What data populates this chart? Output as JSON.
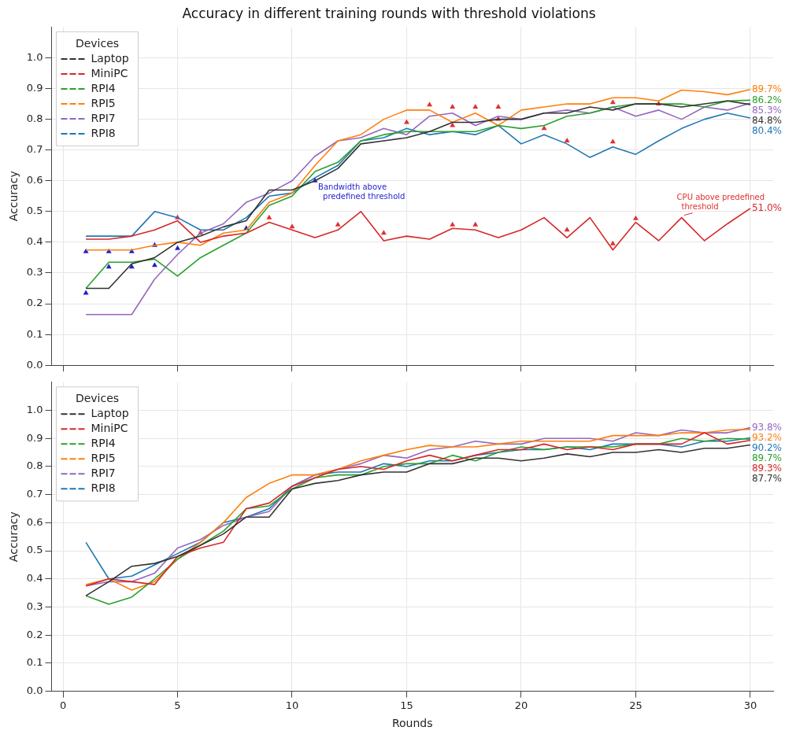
{
  "chart_data": [
    {
      "type": "line",
      "title": "Accuracy in different training rounds with threshold violations",
      "ylabel": "Accuracy",
      "legend_title": "Devices",
      "legend": "top left",
      "grid": true,
      "marker": "none",
      "tick_labels": "y",
      "x": [
        1,
        2,
        3,
        4,
        5,
        6,
        7,
        8,
        9,
        10,
        11,
        12,
        13,
        14,
        15,
        16,
        17,
        18,
        19,
        20,
        21,
        22,
        23,
        24,
        25,
        26,
        27,
        28,
        29,
        30
      ],
      "xlim": [
        -0.5,
        31
      ],
      "xticks": [
        0,
        5,
        10,
        15,
        20,
        25,
        30
      ],
      "ylim": [
        0,
        1.1
      ],
      "yticks": [
        {
          "value": 0,
          "label": "0.0"
        },
        {
          "value": 0.1,
          "label": "0.1"
        },
        {
          "value": 0.2,
          "label": "0.2"
        },
        {
          "value": 0.3,
          "label": "0.3"
        },
        {
          "value": 0.4,
          "label": "0.4"
        },
        {
          "value": 0.5,
          "label": "0.5"
        },
        {
          "value": 0.6,
          "label": "0.6"
        },
        {
          "value": 0.7,
          "label": "0.7"
        },
        {
          "value": 0.8,
          "label": "0.8"
        },
        {
          "value": 0.9,
          "label": "0.9"
        },
        {
          "value": 1,
          "label": "1.0"
        }
      ],
      "annotations": [
        {
          "text": "Bandwidth above\npredefined threshold",
          "x": 11,
          "y": 0.6
        },
        {
          "text": "CPU above predefined\nthreshold",
          "x": 27,
          "y": 0.48
        }
      ],
      "series": [
        {
          "name": "Laptop",
          "color": "#333333",
          "values": [
            0.25,
            0.25,
            0.33,
            0.35,
            0.4,
            0.42,
            0.45,
            0.47,
            0.57,
            0.57,
            0.6,
            0.64,
            0.72,
            0.73,
            0.74,
            0.76,
            0.79,
            0.79,
            0.8,
            0.8,
            0.82,
            0.82,
            0.84,
            0.83,
            0.85,
            0.85,
            0.84,
            0.85,
            0.86,
            0.848
          ],
          "value_labels": [
            null,
            null,
            null,
            null,
            null,
            null,
            null,
            null,
            null,
            null,
            null,
            null,
            null,
            null,
            null,
            null,
            null,
            null,
            null,
            null,
            null,
            null,
            null,
            null,
            null,
            null,
            null,
            null,
            null,
            "84.8%"
          ]
        },
        {
          "name": "MiniPC",
          "color": "#d62728",
          "values": [
            0.41,
            0.41,
            0.42,
            0.44,
            0.47,
            0.4,
            0.42,
            0.43,
            0.465,
            0.44,
            0.415,
            0.44,
            0.5,
            0.405,
            0.42,
            0.41,
            0.445,
            0.44,
            0.415,
            0.44,
            0.48,
            0.415,
            0.48,
            0.375,
            0.465,
            0.405,
            0.48,
            0.405,
            0.46,
            0.51
          ],
          "value_labels": [
            null,
            null,
            null,
            null,
            null,
            null,
            null,
            null,
            null,
            null,
            null,
            null,
            null,
            null,
            null,
            null,
            null,
            null,
            null,
            null,
            null,
            null,
            null,
            null,
            null,
            null,
            null,
            null,
            null,
            "51.0%"
          ]
        },
        {
          "name": "RPI4",
          "color": "#2ca02c",
          "values": [
            0.25,
            0.335,
            0.335,
            0.345,
            0.29,
            0.35,
            0.39,
            0.43,
            0.52,
            0.55,
            0.63,
            0.66,
            0.73,
            0.75,
            0.76,
            0.76,
            0.76,
            0.76,
            0.78,
            0.77,
            0.78,
            0.81,
            0.82,
            0.84,
            0.85,
            0.85,
            0.85,
            0.84,
            0.86,
            0.862
          ],
          "value_labels": [
            null,
            null,
            null,
            null,
            null,
            null,
            null,
            null,
            null,
            null,
            null,
            null,
            null,
            null,
            null,
            null,
            null,
            null,
            null,
            null,
            null,
            null,
            null,
            null,
            null,
            null,
            null,
            null,
            null,
            "86.2%"
          ]
        },
        {
          "name": "RPI5",
          "color": "#ff7f0e",
          "values": [
            0.375,
            0.375,
            0.375,
            0.39,
            0.4,
            0.39,
            0.43,
            0.44,
            0.53,
            0.56,
            0.65,
            0.73,
            0.75,
            0.8,
            0.83,
            0.83,
            0.79,
            0.82,
            0.78,
            0.83,
            0.84,
            0.85,
            0.85,
            0.87,
            0.87,
            0.86,
            0.895,
            0.89,
            0.88,
            0.897
          ],
          "value_labels": [
            null,
            null,
            null,
            null,
            null,
            null,
            null,
            null,
            null,
            null,
            null,
            null,
            null,
            null,
            null,
            null,
            null,
            null,
            null,
            null,
            null,
            null,
            null,
            null,
            null,
            null,
            null,
            null,
            null,
            "89.7%"
          ]
        },
        {
          "name": "RPI7",
          "color": "#9467bd",
          "values": [
            0.165,
            0.165,
            0.165,
            0.28,
            0.36,
            0.43,
            0.46,
            0.53,
            0.56,
            0.6,
            0.68,
            0.73,
            0.74,
            0.77,
            0.75,
            0.81,
            0.82,
            0.78,
            0.81,
            0.8,
            0.82,
            0.83,
            0.82,
            0.84,
            0.81,
            0.83,
            0.8,
            0.84,
            0.83,
            0.853
          ],
          "value_labels": [
            null,
            null,
            null,
            null,
            null,
            null,
            null,
            null,
            null,
            null,
            null,
            null,
            null,
            null,
            null,
            null,
            null,
            null,
            null,
            null,
            null,
            null,
            null,
            null,
            null,
            null,
            null,
            null,
            null,
            "85.3%"
          ]
        },
        {
          "name": "RPI8",
          "color": "#1f77b4",
          "values": [
            0.42,
            0.42,
            0.42,
            0.5,
            0.48,
            0.44,
            0.44,
            0.48,
            0.55,
            0.56,
            0.61,
            0.65,
            0.73,
            0.74,
            0.77,
            0.75,
            0.76,
            0.75,
            0.78,
            0.72,
            0.75,
            0.72,
            0.676,
            0.71,
            0.686,
            0.73,
            0.77,
            0.8,
            0.82,
            0.804
          ],
          "value_labels": [
            null,
            null,
            null,
            null,
            null,
            null,
            null,
            null,
            null,
            null,
            null,
            null,
            null,
            null,
            null,
            null,
            null,
            null,
            null,
            null,
            null,
            null,
            null,
            null,
            null,
            null,
            null,
            null,
            null,
            "80.4%"
          ]
        },
        {
          "type": "scatter",
          "marker": "triangle",
          "color": "#1f1fcc",
          "x": [
            1,
            1,
            2,
            2,
            3,
            3,
            4,
            4,
            5,
            8,
            11
          ],
          "values": [
            0.37,
            0.235,
            0.37,
            0.32,
            0.37,
            0.32,
            0.39,
            0.325,
            0.38,
            0.445,
            0.6
          ]
        },
        {
          "type": "scatter",
          "marker": "triangle",
          "color": "#e03030",
          "x": [
            5,
            6,
            9,
            10,
            12,
            14,
            15,
            16,
            17,
            17,
            17,
            18,
            18,
            19,
            19,
            21,
            22,
            22,
            24,
            24,
            24,
            25,
            26
          ],
          "values": [
            0.48,
            0.43,
            0.48,
            0.45,
            0.457,
            0.43,
            0.79,
            0.847,
            0.84,
            0.78,
            0.457,
            0.84,
            0.457,
            0.84,
            0.8,
            0.77,
            0.73,
            0.44,
            0.855,
            0.727,
            0.395,
            0.477,
            0.85
          ]
        }
      ]
    },
    {
      "type": "line",
      "xlabel": "Rounds",
      "ylabel": "Accuracy",
      "legend_title": "Devices",
      "legend": "top left",
      "grid": true,
      "marker": "none",
      "x": [
        1,
        2,
        3,
        4,
        5,
        6,
        7,
        8,
        9,
        10,
        11,
        12,
        13,
        14,
        15,
        16,
        17,
        18,
        19,
        20,
        21,
        22,
        23,
        24,
        25,
        26,
        27,
        28,
        29,
        30
      ],
      "xlim": [
        -0.5,
        31
      ],
      "xticks": [
        0,
        5,
        10,
        15,
        20,
        25,
        30
      ],
      "ylim": [
        0,
        1.1
      ],
      "yticks": [
        {
          "value": 0,
          "label": "0.0"
        },
        {
          "value": 0.1,
          "label": "0.1"
        },
        {
          "value": 0.2,
          "label": "0.2"
        },
        {
          "value": 0.3,
          "label": "0.3"
        },
        {
          "value": 0.4,
          "label": "0.4"
        },
        {
          "value": 0.5,
          "label": "0.5"
        },
        {
          "value": 0.6,
          "label": "0.6"
        },
        {
          "value": 0.7,
          "label": "0.7"
        },
        {
          "value": 0.8,
          "label": "0.8"
        },
        {
          "value": 0.9,
          "label": "0.9"
        },
        {
          "value": 1,
          "label": "1.0"
        }
      ],
      "series": [
        {
          "name": "Laptop",
          "color": "#333333",
          "values": [
            0.34,
            0.39,
            0.445,
            0.455,
            0.48,
            0.52,
            0.56,
            0.62,
            0.62,
            0.72,
            0.74,
            0.75,
            0.77,
            0.78,
            0.78,
            0.81,
            0.81,
            0.83,
            0.83,
            0.82,
            0.83,
            0.845,
            0.835,
            0.85,
            0.85,
            0.86,
            0.85,
            0.865,
            0.865,
            0.877
          ],
          "value_labels": [
            null,
            null,
            null,
            null,
            null,
            null,
            null,
            null,
            null,
            null,
            null,
            null,
            null,
            null,
            null,
            null,
            null,
            null,
            null,
            null,
            null,
            null,
            null,
            null,
            null,
            null,
            null,
            null,
            null,
            "87.7%"
          ]
        },
        {
          "name": "MiniPC",
          "color": "#d62728",
          "values": [
            0.375,
            0.4,
            0.39,
            0.38,
            0.48,
            0.51,
            0.53,
            0.65,
            0.67,
            0.73,
            0.76,
            0.79,
            0.8,
            0.79,
            0.82,
            0.84,
            0.82,
            0.84,
            0.86,
            0.86,
            0.88,
            0.86,
            0.87,
            0.86,
            0.88,
            0.88,
            0.88,
            0.92,
            0.88,
            0.893
          ],
          "value_labels": [
            null,
            null,
            null,
            null,
            null,
            null,
            null,
            null,
            null,
            null,
            null,
            null,
            null,
            null,
            null,
            null,
            null,
            null,
            null,
            null,
            null,
            null,
            null,
            null,
            null,
            null,
            null,
            null,
            null,
            "89.3%"
          ]
        },
        {
          "name": "RPI4",
          "color": "#2ca02c",
          "values": [
            0.34,
            0.31,
            0.335,
            0.4,
            0.47,
            0.52,
            0.57,
            0.65,
            0.66,
            0.72,
            0.76,
            0.77,
            0.77,
            0.8,
            0.81,
            0.81,
            0.84,
            0.82,
            0.85,
            0.87,
            0.86,
            0.87,
            0.87,
            0.87,
            0.88,
            0.88,
            0.9,
            0.89,
            0.9,
            0.897
          ],
          "value_labels": [
            null,
            null,
            null,
            null,
            null,
            null,
            null,
            null,
            null,
            null,
            null,
            null,
            null,
            null,
            null,
            null,
            null,
            null,
            null,
            null,
            null,
            null,
            null,
            null,
            null,
            null,
            null,
            null,
            null,
            "89.7%"
          ]
        },
        {
          "name": "RPI5",
          "color": "#ff7f0e",
          "values": [
            0.38,
            0.4,
            0.36,
            0.39,
            0.47,
            0.53,
            0.6,
            0.69,
            0.74,
            0.77,
            0.77,
            0.79,
            0.82,
            0.84,
            0.86,
            0.875,
            0.87,
            0.87,
            0.88,
            0.89,
            0.89,
            0.89,
            0.89,
            0.91,
            0.91,
            0.91,
            0.92,
            0.92,
            0.93,
            0.932
          ],
          "value_labels": [
            null,
            null,
            null,
            null,
            null,
            null,
            null,
            null,
            null,
            null,
            null,
            null,
            null,
            null,
            null,
            null,
            null,
            null,
            null,
            null,
            null,
            null,
            null,
            null,
            null,
            null,
            null,
            null,
            null,
            "93.2%"
          ]
        },
        {
          "name": "RPI7",
          "color": "#9467bd",
          "values": [
            0.375,
            0.39,
            0.39,
            0.42,
            0.51,
            0.54,
            0.59,
            0.62,
            0.64,
            0.73,
            0.77,
            0.79,
            0.81,
            0.84,
            0.83,
            0.86,
            0.87,
            0.89,
            0.88,
            0.88,
            0.9,
            0.9,
            0.9,
            0.89,
            0.92,
            0.91,
            0.93,
            0.92,
            0.92,
            0.938
          ],
          "value_labels": [
            null,
            null,
            null,
            null,
            null,
            null,
            null,
            null,
            null,
            null,
            null,
            null,
            null,
            null,
            null,
            null,
            null,
            null,
            null,
            null,
            null,
            null,
            null,
            null,
            null,
            null,
            null,
            null,
            null,
            "93.8%"
          ]
        },
        {
          "name": "RPI8",
          "color": "#1f77b4",
          "values": [
            0.53,
            0.4,
            0.41,
            0.45,
            0.49,
            0.53,
            0.6,
            0.62,
            0.65,
            0.73,
            0.77,
            0.78,
            0.78,
            0.81,
            0.8,
            0.82,
            0.82,
            0.84,
            0.85,
            0.86,
            0.86,
            0.87,
            0.86,
            0.88,
            0.88,
            0.88,
            0.87,
            0.89,
            0.89,
            0.902
          ],
          "value_labels": [
            null,
            null,
            null,
            null,
            null,
            null,
            null,
            null,
            null,
            null,
            null,
            null,
            null,
            null,
            null,
            null,
            null,
            null,
            null,
            null,
            null,
            null,
            null,
            null,
            null,
            null,
            null,
            null,
            null,
            "90.2%"
          ]
        }
      ]
    }
  ]
}
